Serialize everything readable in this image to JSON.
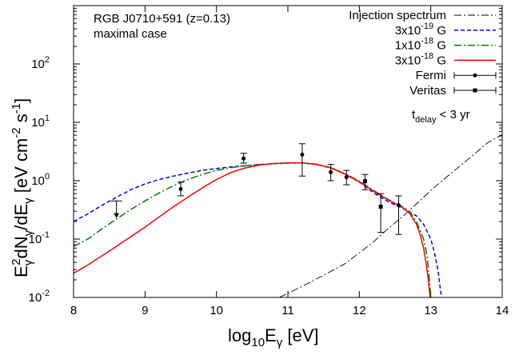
{
  "chart_data": {
    "type": "line",
    "annotation": [
      "RGB J0710+591 (z=0.13)",
      "maximal case"
    ],
    "note": "t_delay < 3 yr",
    "xlabel": {
      "main": "log",
      "sub1": "10",
      "mid": "E",
      "sub2": "γ",
      "tail": " [eV]"
    },
    "ylabel": {
      "p1": "E",
      "sub1": "γ",
      "sup1": "2",
      "p2": "dN",
      "sub2": "γ",
      "p3": "/dE",
      "sub3": "γ",
      "p4": " [eV cm",
      "sup2": "-2",
      "p5": " s",
      "sup3": "-1",
      "p6": "]"
    },
    "xlim": [
      8,
      14
    ],
    "ylim_log10": [
      -2,
      3
    ],
    "x_ticks": [
      "8",
      "9",
      "10",
      "11",
      "12",
      "13",
      "14"
    ],
    "y_ticks": [
      {
        "mant": "10",
        "exp": "-2"
      },
      {
        "mant": "10",
        "exp": "-1"
      },
      {
        "mant": "10",
        "exp": "0"
      },
      {
        "mant": "10",
        "exp": "1"
      },
      {
        "mant": "10",
        "exp": "2"
      }
    ],
    "legend_position": "top-right",
    "series": [
      {
        "name": "Injection spectrum",
        "color": "#000000",
        "dash": "dash-dot",
        "width": 0.9,
        "points": [
          [
            10.88,
            0.01
          ],
          [
            11.2,
            0.0155
          ],
          [
            11.5,
            0.024
          ],
          [
            11.8,
            0.038
          ],
          [
            12.0,
            0.058
          ],
          [
            12.2,
            0.09
          ],
          [
            12.4,
            0.15
          ],
          [
            12.6,
            0.24
          ],
          [
            12.8,
            0.4
          ],
          [
            13.0,
            0.68
          ],
          [
            13.2,
            1.1
          ],
          [
            13.4,
            1.75
          ],
          [
            13.6,
            2.8
          ],
          [
            13.8,
            4.5
          ],
          [
            13.95,
            5.7
          ],
          [
            14.0,
            5.9
          ]
        ]
      },
      {
        "name_base": "3x10",
        "name_exp": "-19",
        "name_unit": " G",
        "color": "#0000ff",
        "dash": "dashed",
        "width": 1.5,
        "points": [
          [
            8.0,
            0.2
          ],
          [
            8.2,
            0.27
          ],
          [
            8.4,
            0.38
          ],
          [
            8.6,
            0.52
          ],
          [
            8.8,
            0.7
          ],
          [
            9.0,
            0.88
          ],
          [
            9.2,
            1.05
          ],
          [
            9.4,
            1.2
          ],
          [
            9.6,
            1.35
          ],
          [
            9.8,
            1.5
          ],
          [
            10.0,
            1.62
          ],
          [
            10.2,
            1.72
          ],
          [
            10.4,
            1.8
          ],
          [
            10.6,
            1.88
          ],
          [
            10.8,
            1.95
          ],
          [
            11.0,
            2.0
          ],
          [
            11.2,
            2.02
          ],
          [
            11.4,
            1.9
          ],
          [
            11.6,
            1.65
          ],
          [
            11.8,
            1.3
          ],
          [
            12.0,
            0.95
          ],
          [
            12.2,
            0.62
          ],
          [
            12.4,
            0.44
          ],
          [
            12.6,
            0.34
          ],
          [
            12.8,
            0.25
          ],
          [
            12.9,
            0.18
          ],
          [
            13.0,
            0.1
          ],
          [
            13.05,
            0.06
          ],
          [
            13.1,
            0.03
          ],
          [
            13.13,
            0.015
          ],
          [
            13.15,
            0.01
          ]
        ]
      },
      {
        "name_base": "1x10",
        "name_exp": "-18",
        "name_unit": " G",
        "color": "#008000",
        "dash": "dash-dot",
        "width": 1.5,
        "points": [
          [
            8.0,
            0.075
          ],
          [
            8.2,
            0.1
          ],
          [
            8.4,
            0.15
          ],
          [
            8.6,
            0.22
          ],
          [
            8.8,
            0.32
          ],
          [
            9.0,
            0.45
          ],
          [
            9.2,
            0.62
          ],
          [
            9.4,
            0.82
          ],
          [
            9.6,
            1.05
          ],
          [
            9.8,
            1.28
          ],
          [
            10.0,
            1.5
          ],
          [
            10.2,
            1.68
          ],
          [
            10.4,
            1.8
          ],
          [
            10.6,
            1.9
          ],
          [
            10.8,
            1.97
          ],
          [
            11.0,
            2.02
          ],
          [
            11.2,
            2.03
          ],
          [
            11.4,
            1.92
          ],
          [
            11.6,
            1.68
          ],
          [
            11.8,
            1.32
          ],
          [
            12.0,
            0.98
          ],
          [
            12.2,
            0.68
          ],
          [
            12.4,
            0.48
          ],
          [
            12.6,
            0.36
          ],
          [
            12.7,
            0.3
          ],
          [
            12.8,
            0.2
          ],
          [
            12.9,
            0.1
          ],
          [
            12.95,
            0.05
          ],
          [
            12.98,
            0.02
          ],
          [
            13.0,
            0.01
          ]
        ]
      },
      {
        "name_base": "3x10",
        "name_exp": "-18",
        "name_unit": " G",
        "color": "#ff0000",
        "dash": "solid",
        "width": 1.5,
        "points": [
          [
            8.0,
            0.026
          ],
          [
            8.2,
            0.036
          ],
          [
            8.4,
            0.052
          ],
          [
            8.6,
            0.075
          ],
          [
            8.8,
            0.11
          ],
          [
            9.0,
            0.16
          ],
          [
            9.2,
            0.24
          ],
          [
            9.4,
            0.36
          ],
          [
            9.6,
            0.52
          ],
          [
            9.8,
            0.75
          ],
          [
            10.0,
            1.05
          ],
          [
            10.2,
            1.38
          ],
          [
            10.4,
            1.65
          ],
          [
            10.6,
            1.85
          ],
          [
            10.8,
            1.97
          ],
          [
            11.0,
            2.02
          ],
          [
            11.2,
            2.02
          ],
          [
            11.4,
            1.9
          ],
          [
            11.6,
            1.66
          ],
          [
            11.8,
            1.3
          ],
          [
            12.0,
            0.96
          ],
          [
            12.2,
            0.66
          ],
          [
            12.4,
            0.47
          ],
          [
            12.6,
            0.35
          ],
          [
            12.7,
            0.28
          ],
          [
            12.8,
            0.18
          ],
          [
            12.85,
            0.12
          ],
          [
            12.9,
            0.07
          ],
          [
            12.94,
            0.035
          ],
          [
            12.97,
            0.018
          ],
          [
            12.99,
            0.01
          ]
        ]
      }
    ],
    "data_series": [
      {
        "name": "Fermi",
        "marker": "circle",
        "points": [
          {
            "x": 9.5,
            "y": 0.72,
            "ylo": 0.55,
            "yhi": 0.95
          },
          {
            "x": 10.38,
            "y": 2.4,
            "ylo": 2.0,
            "yhi": 2.95
          },
          {
            "x": 11.2,
            "y": 2.8,
            "ylo": 1.2,
            "yhi": 4.3
          },
          {
            "x": 11.6,
            "y": 1.4,
            "ylo": 1.0,
            "yhi": 1.9
          },
          {
            "x": 11.82,
            "y": 1.15,
            "ylo": 0.85,
            "yhi": 1.5
          },
          {
            "x": 12.55,
            "y": 0.38,
            "ylo": 0.12,
            "yhi": 0.55
          }
        ],
        "upper_limits": [
          {
            "x": 8.6,
            "y": 0.45,
            "low": 0.23
          }
        ]
      },
      {
        "name": "Veritas",
        "marker": "square",
        "points": [
          {
            "x": 12.08,
            "y": 0.98,
            "ylo": 0.7,
            "yhi": 1.28
          },
          {
            "x": 12.3,
            "y": 0.36,
            "ylo": 0.13,
            "yhi": 0.6
          }
        ]
      }
    ]
  }
}
